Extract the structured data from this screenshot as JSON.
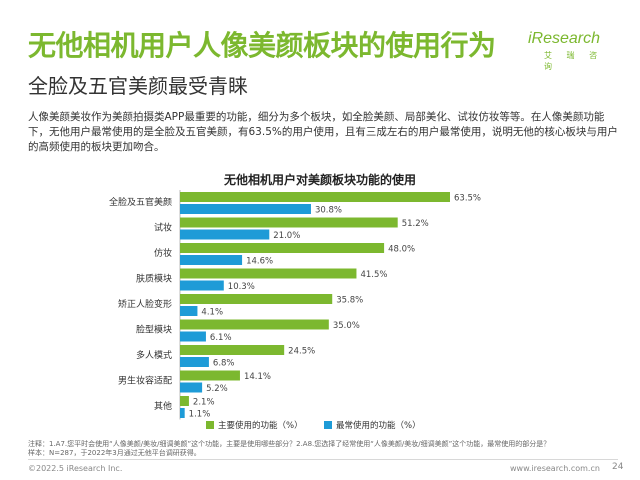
{
  "header": {
    "title": "无他相机用户人像美颜板块的使用行为",
    "subtitle": "全脸及五官美颜最受青睐"
  },
  "logo": {
    "main": "iResearch",
    "sub": "艾 瑞 咨 询"
  },
  "description": "人像美颜美妆作为美颜拍摄类APP最重要的功能，细分为多个板块，如全脸美颜、局部美化、试妆仿妆等等。在人像美颜功能下，无他用户最常使用的是全脸及五官美颜，有63.5%的用户使用，且有三成左右的用户最常使用，说明无他的核心板块与用户的高频使用的板块更加吻合。",
  "chart_data": {
    "type": "bar",
    "orientation": "horizontal",
    "title": "无他相机用户对美颜板块功能的使用",
    "categories": [
      "全脸及五官美颜",
      "试妆",
      "仿妆",
      "肤质模块",
      "矫正人脸变形",
      "脸型模块",
      "多人模式",
      "男生妆容适配",
      "其他"
    ],
    "series": [
      {
        "name": "主要使用的功能（%）",
        "color": "#7cb82f",
        "values": [
          63.5,
          51.2,
          48.0,
          41.5,
          35.8,
          35.0,
          24.5,
          14.1,
          2.1
        ],
        "labels": [
          "63.5%",
          "51.2%",
          "48.0%",
          "41.5%",
          "35.8%",
          "35.0%",
          "24.5%",
          "14.1%",
          "2.1%"
        ]
      },
      {
        "name": "最常使用的功能（%）",
        "color": "#1e9bd7",
        "values": [
          30.8,
          21.0,
          14.6,
          10.3,
          4.1,
          6.1,
          6.8,
          5.2,
          1.1
        ],
        "labels": [
          "30.8%",
          "21.0%",
          "14.6%",
          "10.3%",
          "4.1%",
          "6.1%",
          "6.8%",
          "5.2%",
          "1.1%"
        ]
      }
    ],
    "xlim": [
      0,
      70
    ],
    "grid": false,
    "legend_position": "bottom"
  },
  "footnote": {
    "line1": "注释：1.A7.您平时会使用“人像美颜/美妆/细调美颜”这个功能，主要是使用哪些部分？2.A8.您选择了经常使用“人像美颜/美妆/细调美颜”这个功能，最常使用的部分是？",
    "line2": "样本：N=287，于2022年3月通过无他平台调研获得。"
  },
  "footer": {
    "copyright": "©2022.5 iResearch Inc.",
    "website": "www.iresearch.com.cn",
    "page": "24"
  }
}
